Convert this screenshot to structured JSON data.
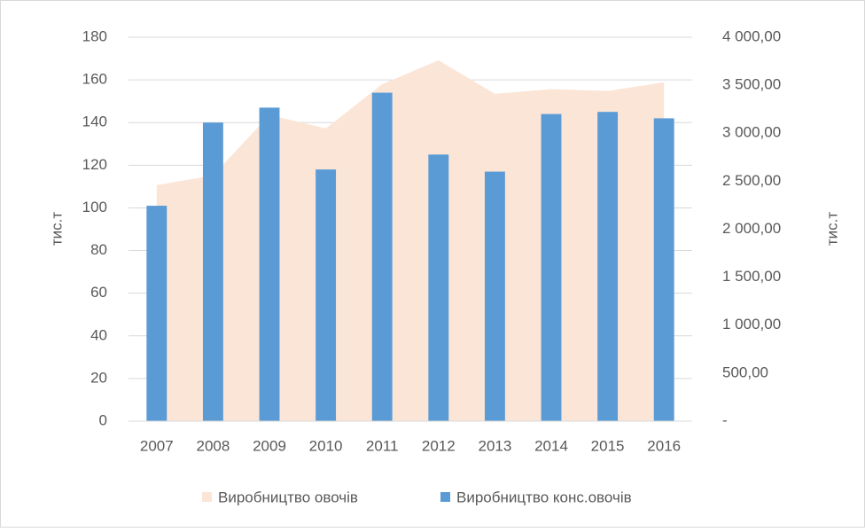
{
  "chart_data": {
    "type": "combo",
    "categories": [
      "2007",
      "2008",
      "2009",
      "2010",
      "2011",
      "2012",
      "2013",
      "2014",
      "2015",
      "2016"
    ],
    "series": [
      {
        "name": "Виробництво овочів",
        "type": "area",
        "axis": "y2",
        "color": "#fbe5d6",
        "values": [
          2460,
          2560,
          3190,
          3050,
          3510,
          3760,
          3410,
          3460,
          3440,
          3530
        ]
      },
      {
        "name": "Виробництво конс.овочів",
        "type": "bar",
        "color": "#5b9bd5",
        "values": [
          101,
          140,
          147,
          118,
          154,
          125,
          117,
          144,
          145,
          142
        ]
      }
    ],
    "ylabel": "тис.т",
    "y2label": "тис.т",
    "ylim": [
      0,
      180
    ],
    "yticks": [
      0,
      20,
      40,
      60,
      80,
      100,
      120,
      140,
      160,
      180
    ],
    "y2lim": [
      0,
      4000
    ],
    "y2ticks": [
      {
        "value": 0,
        "label": "-"
      },
      {
        "value": 500,
        "label": "500,00"
      },
      {
        "value": 1000,
        "label": "1 000,00"
      },
      {
        "value": 1500,
        "label": "1 500,00"
      },
      {
        "value": 2000,
        "label": "2 000,00"
      },
      {
        "value": 2500,
        "label": "2 500,00"
      },
      {
        "value": 3000,
        "label": "3 000,00"
      },
      {
        "value": 3500,
        "label": "3 500,00"
      },
      {
        "value": 4000,
        "label": "4 000,00"
      }
    ],
    "grid": true,
    "legend": "bottom"
  }
}
